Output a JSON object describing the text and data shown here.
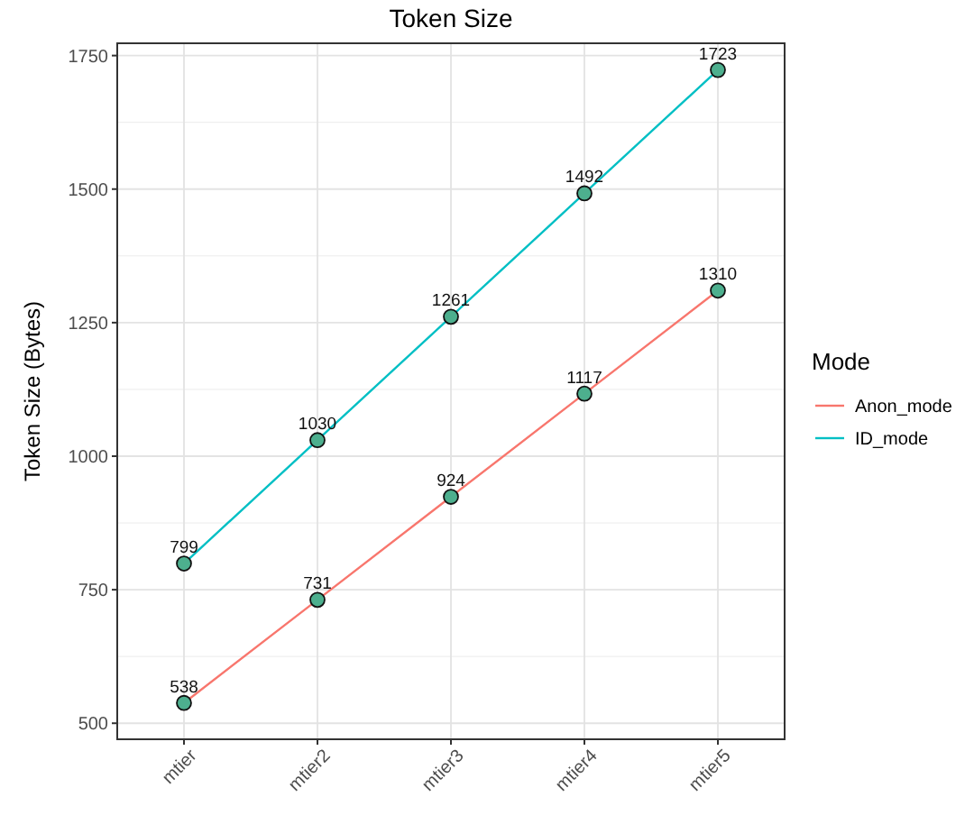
{
  "chart_data": {
    "type": "line",
    "title": "Token Size",
    "ylabel": "Token Size (Bytes)",
    "legend_title": "Mode",
    "categories": [
      "mtier",
      "mtier2",
      "mtier3",
      "mtier4",
      "mtier5"
    ],
    "series": [
      {
        "name": "Anon_mode",
        "color": "#f8766d",
        "values": [
          538,
          731,
          924,
          1117,
          1310
        ]
      },
      {
        "name": "ID_mode",
        "color": "#00bfc4",
        "values": [
          799,
          1030,
          1261,
          1492,
          1723
        ]
      }
    ],
    "ylim": [
      470,
      1773
    ],
    "yticks": [
      500,
      750,
      1000,
      1250,
      1500,
      1750
    ],
    "grid": true,
    "legend": "right",
    "marker": "circle",
    "line_style": "solid",
    "data_labels": true
  }
}
